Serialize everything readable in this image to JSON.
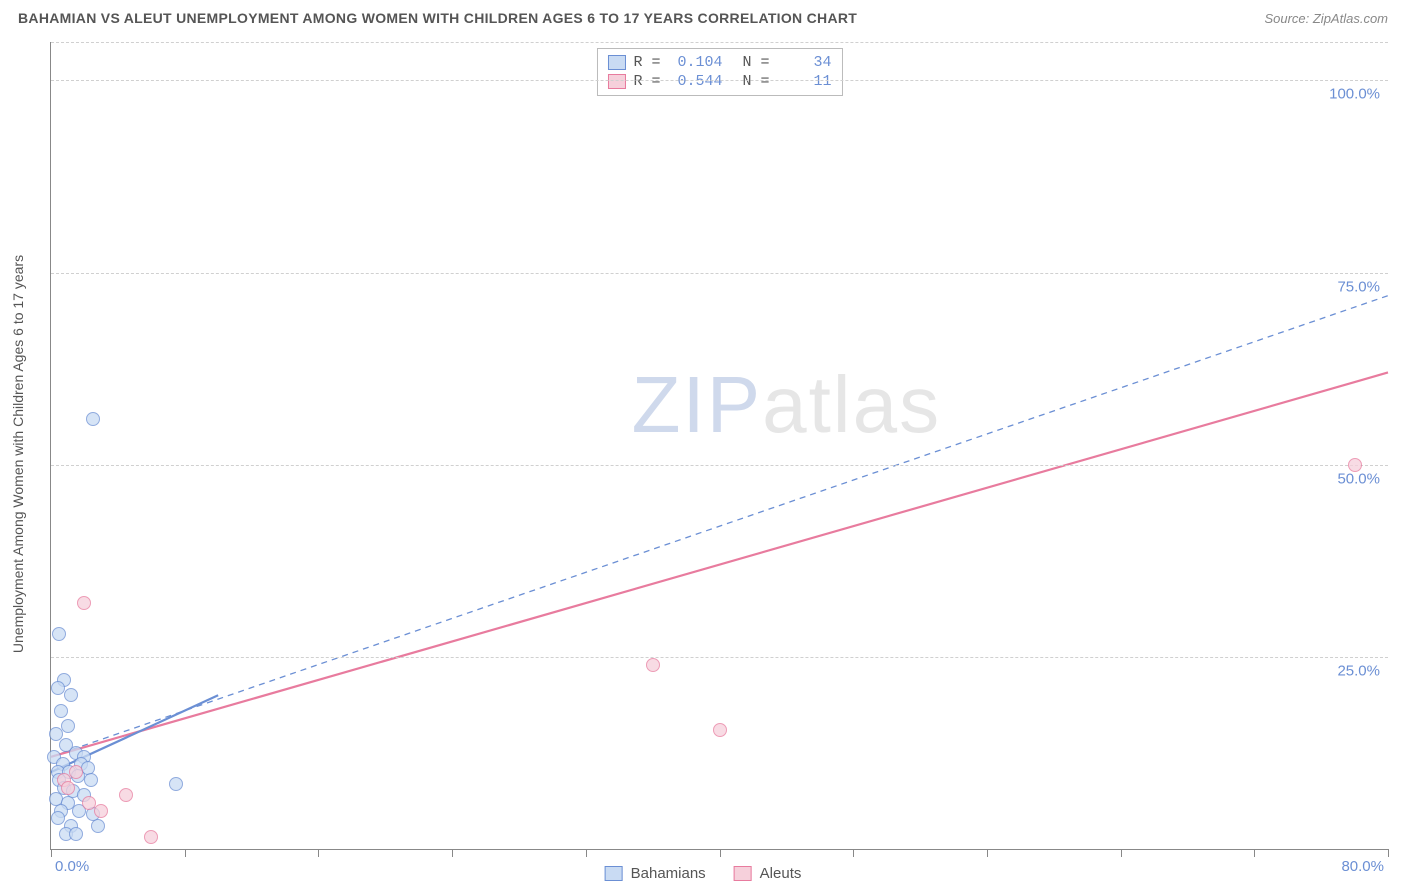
{
  "header": {
    "title": "BAHAMIAN VS ALEUT UNEMPLOYMENT AMONG WOMEN WITH CHILDREN AGES 6 TO 17 YEARS CORRELATION CHART",
    "source": "Source: ZipAtlas.com",
    "title_fontsize": 14,
    "source_fontsize": 13,
    "title_color": "#555555",
    "source_color": "#888888"
  },
  "watermark": {
    "zip": "ZIP",
    "atlas": "atlas"
  },
  "chart": {
    "type": "scatter",
    "background_color": "#ffffff",
    "grid_color": "#d0d0d0",
    "axis_color": "#888888",
    "y_axis_title": "Unemployment Among Women with Children Ages 6 to 17 years",
    "y_axis_title_fontsize": 14,
    "xlim": [
      0,
      80
    ],
    "ylim": [
      0,
      105
    ],
    "x_ticks": [
      0,
      8,
      16,
      24,
      32,
      40,
      48,
      56,
      64,
      72,
      80
    ],
    "y_gridlines": [
      25,
      50,
      75,
      100,
      105
    ],
    "y_tick_labels": {
      "25": "25.0%",
      "50": "50.0%",
      "75": "75.0%",
      "100": "100.0%"
    },
    "x_label_min": "0.0%",
    "x_label_max": "80.0%",
    "tick_label_color": "#6b8fd4",
    "tick_label_fontsize": 15,
    "marker_radius": 7,
    "marker_border_width": 1,
    "series": {
      "bahamians": {
        "label": "Bahamians",
        "fill": "#c9dbf3",
        "stroke": "#6b8fd4",
        "fill_opacity": 0.75,
        "points": [
          [
            0.5,
            28
          ],
          [
            0.8,
            22
          ],
          [
            0.4,
            21
          ],
          [
            1.2,
            20
          ],
          [
            2.5,
            56
          ],
          [
            0.6,
            18
          ],
          [
            1.0,
            16
          ],
          [
            0.3,
            15
          ],
          [
            0.9,
            13.5
          ],
          [
            1.5,
            12.5
          ],
          [
            0.2,
            12
          ],
          [
            2.0,
            12
          ],
          [
            0.7,
            11
          ],
          [
            1.8,
            11
          ],
          [
            2.2,
            10.5
          ],
          [
            0.4,
            10
          ],
          [
            1.1,
            10
          ],
          [
            1.6,
            9.5
          ],
          [
            0.5,
            9
          ],
          [
            2.4,
            9
          ],
          [
            7.5,
            8.5
          ],
          [
            0.8,
            8
          ],
          [
            1.3,
            7.5
          ],
          [
            2.0,
            7
          ],
          [
            0.3,
            6.5
          ],
          [
            1.0,
            6
          ],
          [
            1.7,
            5
          ],
          [
            0.6,
            5
          ],
          [
            2.5,
            4.5
          ],
          [
            0.4,
            4
          ],
          [
            1.2,
            3
          ],
          [
            2.8,
            3
          ],
          [
            0.9,
            2
          ],
          [
            1.5,
            2
          ]
        ],
        "trend": {
          "x1": 0,
          "y1": 10,
          "x2": 10,
          "y2": 20,
          "width": 2.2,
          "color": "#6b8fd4"
        },
        "ideal": {
          "x1": 0,
          "y1": 12,
          "x2": 80,
          "y2": 72,
          "width": 1.3,
          "color": "#6b8fd4",
          "dashed": true
        }
      },
      "aleuts": {
        "label": "Aleuts",
        "fill": "#f6d0db",
        "stroke": "#e87b9e",
        "fill_opacity": 0.75,
        "points": [
          [
            2.0,
            32
          ],
          [
            36,
            24
          ],
          [
            40,
            15.5
          ],
          [
            78,
            50
          ],
          [
            1.5,
            10
          ],
          [
            4.5,
            7
          ],
          [
            6.0,
            1.5
          ],
          [
            0.8,
            9
          ],
          [
            2.3,
            6
          ],
          [
            1.0,
            8
          ],
          [
            3.0,
            5
          ]
        ],
        "trend": {
          "x1": 0,
          "y1": 12,
          "x2": 80,
          "y2": 62,
          "width": 2.2,
          "color": "#e87b9e"
        }
      }
    }
  },
  "legend_top": {
    "border_color": "#bbbbbb",
    "font": "monospace",
    "fontsize": 15,
    "rows": [
      {
        "swatch_fill": "#c9dbf3",
        "swatch_stroke": "#6b8fd4",
        "r_label": "R =",
        "r_value": "0.104",
        "n_label": "N =",
        "n_value": "34"
      },
      {
        "swatch_fill": "#f6d0db",
        "swatch_stroke": "#e87b9e",
        "r_label": "R =",
        "r_value": "0.544",
        "n_label": "N =",
        "n_value": "11"
      }
    ]
  },
  "legend_bottom": {
    "fontsize": 15,
    "items": [
      {
        "swatch_fill": "#c9dbf3",
        "swatch_stroke": "#6b8fd4",
        "label": "Bahamians"
      },
      {
        "swatch_fill": "#f6d0db",
        "swatch_stroke": "#e87b9e",
        "label": "Aleuts"
      }
    ]
  }
}
